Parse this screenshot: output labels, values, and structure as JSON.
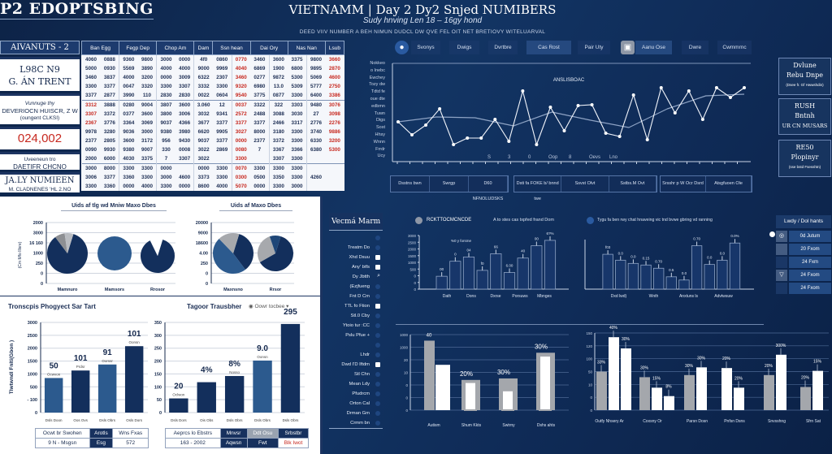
{
  "header": {
    "app_title": "P2 EDOPTSBING",
    "title": "VIETNAMM | Day 2 Dy2 Snjed NUMIBERS",
    "subtitle": "Sudy hnving Len 18 – 16gy hond",
    "tagline": "DEED VIIV NUMBER A BEH NIMUN DUDCL DW QVE FEL OIT NET BRETIOVY WITELUARVAL"
  },
  "info": {
    "header": "AIVANUTS - 2",
    "box1": [
      "L98C N9",
      "G. ÁN TRENT"
    ],
    "box2": [
      "Vunnuge thy",
      "DEVERIOCN HUISCR, Z W",
      "(oungent CLKSI)"
    ],
    "highlight": "024,002",
    "box4": [
      "Uveeneun tro",
      "DAETIFR CHCNO"
    ],
    "box5": [
      "JA.LY NUMIEEN",
      "M. CLADNENES 'HL 2.NO"
    ]
  },
  "table": {
    "headers": [
      {
        "label": "Ban Egg",
        "span": 2
      },
      {
        "label": "Fegp Dep",
        "span": 2
      },
      {
        "label": "Chop Am",
        "span": 2
      },
      {
        "label": "Dam",
        "span": 1
      },
      {
        "label": "Ssn hean",
        "span": 2
      },
      {
        "label": "Dai Ory",
        "span": 2
      },
      {
        "label": "Nas Nan",
        "span": 2
      },
      {
        "label": "Lsub",
        "span": 1
      }
    ],
    "red_columns": [
      8,
      13
    ],
    "rows": [
      [
        "4060",
        "0888",
        "9360",
        "9800",
        "3000",
        "0000",
        "4f0",
        "0860",
        "0770",
        "3460",
        "3600",
        "3375",
        "9800",
        "3660"
      ],
      [
        "5000",
        "0930",
        "5569",
        "3890",
        "4000",
        "4000",
        "9000",
        "9969",
        "4040",
        "6869",
        "1900",
        "6800",
        "9895",
        "2870"
      ],
      [
        "3460",
        "3837",
        "4000",
        "3200",
        "0000",
        "3009",
        "6322",
        "2307",
        "3460",
        "0277",
        "9872",
        "5300",
        "5069",
        "4600"
      ],
      [
        "3300",
        "3377",
        "0047",
        "3320",
        "3300",
        "3307",
        "3332",
        "3300",
        "9320",
        "6980",
        "13.0",
        "5309",
        "5777",
        "2750"
      ],
      [
        "3377",
        "2877",
        "3990",
        "110",
        "2830",
        "2830",
        "0022",
        "0604",
        "9540",
        "3775",
        "0877",
        "3300",
        "6400",
        "3386"
      ],
      [
        "3312",
        "3888",
        "0280",
        "9004",
        "3807",
        "3600",
        "3.060",
        "12",
        "0037",
        "3322",
        "322",
        "3303",
        "9480",
        "3076"
      ],
      [
        "3307",
        "3372",
        "0377",
        "3600",
        "3800",
        "3006",
        "3032",
        "9341",
        "2572",
        "2488",
        "3088",
        "3030",
        "27",
        "3098"
      ],
      [
        "2367",
        "3776",
        "3364",
        "3069",
        "9037",
        "4366",
        "3677",
        "3377",
        "3377",
        "3377",
        "2466",
        "3317",
        "2776",
        "2276"
      ],
      [
        "9978",
        "3280",
        "9036",
        "3000",
        "9380",
        "3980",
        "6620",
        "9905",
        "3027",
        "8000",
        "3180",
        "3300",
        "3740",
        "9886"
      ],
      [
        "2377",
        "2805",
        "3600",
        "3172",
        "956",
        "9430",
        "9037",
        "3377",
        "0000",
        "2377",
        "3372",
        "3300",
        "6330",
        "3200"
      ],
      [
        "0090",
        "9930",
        "9380",
        "9007",
        "330",
        "0008",
        "3022",
        "2869",
        "0080",
        "7",
        "3367",
        "3366",
        "6380",
        "5300"
      ],
      [
        "2000",
        "6000",
        "4030",
        "3375",
        "7",
        "3307",
        "3022",
        "",
        "3300",
        "",
        "3307",
        "3300",
        "",
        ""
      ],
      [
        "3000",
        "8000",
        "3300",
        "3300",
        "0000",
        "",
        "0000",
        "3300",
        "0070",
        "3300",
        "3300",
        "3300",
        "",
        ""
      ],
      [
        "3006",
        "3377",
        "3360",
        "3300",
        "3000",
        "4600",
        "3373",
        "3300",
        "0300",
        "0500",
        "3350",
        "3300",
        "4260",
        ""
      ],
      [
        "3300",
        "3360",
        "0000",
        "4000",
        "3300",
        "0000",
        "8600",
        "4000",
        "5070",
        "0000",
        "3300",
        "3000",
        "",
        ""
      ]
    ]
  },
  "nav": {
    "items": [
      "Svonys",
      "Dwigs",
      "Dvrtbre",
      "Cas Rost",
      "Pair Uty",
      "Aanu Ose",
      "Dwre",
      "Cwmmrnc"
    ],
    "active": [
      "Cas Rost",
      "Aanu Ose"
    ]
  },
  "line_chart": {
    "type": "line",
    "title": "ANSLISBOAC",
    "ylabels": [
      "Nokkeo",
      "o Inebc",
      "Ewchey",
      "Tozy dw",
      "Tdtd fe",
      "oue dte",
      "edbmn",
      "Tuwn",
      "Digs",
      "Sost",
      "Hhsy",
      "Wnnn",
      "Frrdr",
      "Ucy"
    ],
    "ylim": [
      0,
      120
    ],
    "series": [
      {
        "values": [
          50,
          34,
          46,
          66,
          22,
          30,
          30,
          53,
          26,
          88,
          22,
          68,
          39,
          70,
          71,
          36,
          32,
          83,
          28,
          92,
          61,
          88,
          53,
          92,
          80,
          92
        ]
      }
    ],
    "trend": [
      50,
      56,
      55,
      45,
      62,
      52,
      43,
      66,
      82,
      84
    ],
    "xlabels": [
      "S",
      "3",
      "0",
      "Oop",
      "8",
      "Oevs",
      "Lno"
    ]
  },
  "cards": [
    {
      "l1": "Dvlune",
      "l2": "Rebu Dnpe",
      "small": "(Dsee fr. Gf Hwwshdin)"
    },
    {
      "l1": "RUSH",
      "l2": "Bntnh",
      "l3": "UR CN MUSARS"
    },
    {
      "l1": "RE50",
      "l2": "Plopinyr",
      "small": "(sse bstd Fsesshtn)"
    }
  ],
  "button_strip": [
    [
      "Dsstns bwn",
      "Swrgp",
      "D60 NFNOLUDSKS"
    ],
    [
      "Dsti fa FOKE b/ bnnd twe",
      "Ssvst Olvt",
      "Sstbs.M Ovt"
    ],
    [
      "Srsshr p W Ocr Dsrd",
      "Atsgfuoen Ole"
    ]
  ],
  "pies": {
    "left_title": "Uids af tlg wd Mniw Maxo Dbes",
    "right_title": "Uids af Maxo Dbes",
    "left_ylabels": [
      "2000",
      "3000",
      "16 160",
      "1000",
      "250",
      "0",
      "0"
    ],
    "right_ylabels": [
      "20000",
      "9000",
      "18600",
      "4.00",
      "250",
      "0",
      "0"
    ],
    "left_axis_title": "(Cm Mfo Illsre)",
    "items": [
      {
        "label": "Mamnuro",
        "slices": [
          {
            "v": 85,
            "c": "#132f5c"
          },
          {
            "v": 8,
            "c": "#8d8f93"
          },
          {
            "v": 7,
            "c": "#b9bcc1"
          }
        ]
      },
      {
        "label": "Mamsors",
        "slices": [
          {
            "v": 100,
            "c": "#2c5a8e"
          }
        ]
      },
      {
        "label": "Rrosor",
        "slices": [
          {
            "v": 88,
            "c": "#132f5c"
          },
          {
            "v": 12,
            "c": "#ffffff"
          }
        ]
      },
      {
        "label": "Maxnsno",
        "slices": [
          {
            "v": 35,
            "c": "#132f5c"
          },
          {
            "v": 48,
            "c": "#2c5a8e"
          },
          {
            "v": 17,
            "c": "#a7a9ad"
          }
        ]
      },
      {
        "label": "Rrsor",
        "slices": [
          {
            "v": 62,
            "c": "#132f5c"
          },
          {
            "v": 28,
            "c": "#a7a9ad"
          },
          {
            "v": 10,
            "c": "#1e4677"
          }
        ]
      }
    ]
  },
  "bar_left": {
    "type": "bar",
    "title": "Tronscpis Phogyect Sar Tart",
    "ylabel": "Tlwtwndl Fnlti(Gbon )",
    "ylabels": [
      "3000",
      "2500",
      "2000",
      "1500",
      "1000",
      "500",
      "- 100",
      "0"
    ],
    "ylim": [
      0,
      3000
    ],
    "values": [
      1150,
      1400,
      1600,
      2210
    ],
    "labels": [
      "50",
      "101",
      "91",
      "101"
    ],
    "sublabels": [
      "Ocwvon",
      "Prdsr",
      "Oorssr",
      "Oonsn"
    ],
    "categories": [
      "Dsls Doon",
      "Oos Ovs",
      "Dsls Obrs",
      "Osls Dors"
    ],
    "table": [
      [
        "Ocwt br Swohen",
        "Arotls",
        "Wns Fxas"
      ],
      [
        "9 N -  Msgsn",
        "Esg",
        "572"
      ]
    ]
  },
  "bar_right": {
    "type": "bar",
    "title": "Tagoor Trausbher",
    "option": "Oowr tocbee",
    "ylabels": [
      "350",
      "300",
      "250",
      "200",
      "150",
      "100",
      "50",
      "0"
    ],
    "ylim": [
      0,
      350
    ],
    "values": [
      55,
      118,
      142,
      202,
      344
    ],
    "labels": [
      "20",
      "4%",
      "8%",
      "9.0",
      "295"
    ],
    "sublabels": [
      "Oclwon",
      "",
      "Nosso",
      "Oonsn",
      ""
    ],
    "categories": [
      "Dsls Dors",
      "Ois Obs",
      "Dsls Obrs",
      "Dsls Obrs",
      "Dsls Obrs"
    ],
    "table": [
      [
        "Aeprcs lo  Ebstrs",
        "Mnvsr",
        "Ddt Osu",
        "Srbstbr"
      ],
      [
        "163  -  2002",
        "Aqwsn",
        "Fwt",
        "Blk Iwot"
      ]
    ]
  },
  "sidebar": {
    "title": "Vecmá Marm",
    "items": [
      {
        "l": "",
        "m": "dot"
      },
      {
        "l": "Treatm Do",
        "m": "dot"
      },
      {
        "l": "Xhd Dsuu",
        "m": "sq"
      },
      {
        "l": "Any' btfs",
        "m": "sq"
      },
      {
        "l": "Dy Jbtth",
        "m": "mag"
      },
      {
        "l": "(Ezjfueng",
        "m": "dot"
      },
      {
        "l": "Fnt D Cm",
        "m": "dot"
      },
      {
        "l": "TTL fo Ftion",
        "m": "sq"
      },
      {
        "l": "Stl.0 Cby",
        "m": "dot"
      },
      {
        "l": "Ytoio tur  :CC",
        "m": "dot"
      },
      {
        "l": "Pslu Pfue  +",
        "m": "dot"
      },
      {
        "l": "",
        "m": "dot"
      },
      {
        "l": "Lhdr",
        "m": "dot"
      },
      {
        "l": "Dwd I'D Iftdm",
        "m": "sq"
      },
      {
        "l": "Stl Chn",
        "m": "dot"
      },
      {
        "l": "Mean Ldy",
        "m": "dot"
      },
      {
        "l": "Pfudrcm",
        "m": "dot"
      },
      {
        "l": "Orton Cal",
        "m": "dot"
      },
      {
        "l": "Drman Gm",
        "m": "dot"
      },
      {
        "l": "Crmm bn",
        "m": "dot"
      }
    ]
  },
  "mid_left": {
    "type": "bar",
    "heading": "RCKTTOCMCNCDE",
    "caption": "A to stes cas txpfed frand Dom",
    "inner_label": "%0 y forsme",
    "ylabels": [
      "3000",
      "2500",
      "2000",
      "1500",
      "1000",
      "500",
      "0",
      "0",
      "0"
    ],
    "ylim": [
      0,
      100
    ],
    "values": [
      24,
      52,
      60,
      35,
      66,
      31,
      58,
      81,
      91
    ],
    "labels": [
      "00",
      "0",
      "04",
      "f0",
      "66",
      "6.00",
      "40",
      "00",
      "6?%"
    ],
    "categories": [
      "Dath",
      "Dons",
      "Dxrse",
      "Porsuws",
      "Mbnges"
    ]
  },
  "mid_right": {
    "type": "bar",
    "caption": "Tygu fa ben rwy chat hnaveing vic tnd bvwe gbring vd ranning",
    "ylim": [
      0,
      100
    ],
    "values": [
      65,
      54,
      48,
      45,
      39,
      23,
      17,
      81,
      46,
      54,
      86
    ],
    "labels": [
      "f03",
      "0.0",
      "0.0",
      "0.15",
      "0.70",
      "0.5",
      "0.0",
      "0.70",
      "0.0",
      "0.0",
      "0.0%"
    ],
    "categories": [
      "Dxd lwd)",
      "Wnth",
      "Anxtuns ls",
      "Advtwsuw"
    ]
  },
  "legend": {
    "title": "Lwdy / Dol hants",
    "items": [
      "0d Jutum",
      "20 Fxom",
      "24 Fxm",
      "24 Fxom",
      "24 Fxom"
    ]
  },
  "grouped_left": {
    "type": "bar",
    "ylabels": [
      "1000",
      "1000",
      "20",
      "10",
      "0",
      "0",
      "0"
    ],
    "ylim": [
      0,
      100
    ],
    "groups": [
      {
        "gray": 92,
        "white": 60,
        "labels": [
          "40",
          "25%"
        ]
      },
      {
        "gray": 40,
        "white": 37,
        "labels": [
          "20%"
        ]
      },
      {
        "gray": 42,
        "white": 26,
        "labels": [
          "30%"
        ]
      },
      {
        "gray": 76,
        "white": 72,
        "labels": [
          "30%"
        ]
      }
    ],
    "categories": [
      "Autism",
      "Shum Kkts",
      "Swtrny",
      "Dshs ahts"
    ]
  },
  "grouped_right": {
    "type": "bar",
    "ylabels": [
      "150",
      "120",
      "100",
      "50",
      "10",
      "0",
      "0"
    ],
    "ylim": [
      0,
      110
    ],
    "groups": [
      {
        "bars": [
          {
            "c": "gray",
            "v": 55,
            "l": "33%"
          },
          {
            "c": "white",
            "v": 104,
            "l": "40%"
          },
          {
            "c": "white",
            "v": 88,
            "l": "30%"
          }
        ]
      },
      {
        "bars": [
          {
            "c": "gray",
            "v": 47,
            "l": "30%"
          },
          {
            "c": "white",
            "v": 32,
            "l": "15%"
          },
          {
            "c": "white",
            "v": 20,
            "l": "8%"
          }
        ]
      },
      {
        "bars": [
          {
            "c": "gray",
            "v": 50,
            "l": "30%"
          },
          {
            "c": "white",
            "v": 61,
            "l": "30%"
          }
        ]
      },
      {
        "bars": [
          {
            "c": "white",
            "v": 60,
            "l": "20%"
          },
          {
            "c": "white",
            "v": 32,
            "l": "20%"
          }
        ]
      },
      {
        "bars": [
          {
            "c": "gray",
            "v": 50,
            "l": "20%"
          },
          {
            "c": "white",
            "v": 79,
            "l": "300%"
          }
        ]
      },
      {
        "bars": [
          {
            "c": "gray",
            "v": 33,
            "l": "20%"
          },
          {
            "c": "white",
            "v": 56,
            "l": "15%"
          }
        ]
      }
    ],
    "categories": [
      "Outfy Nhsery Ar",
      "Coxsny Or",
      "Parsn Dosn",
      "Pnfsn Dsns",
      "Snvsshng",
      "Sfrn Sat"
    ]
  },
  "colors": {
    "navy": "#132f5c",
    "mid_blue": "#2c5a8e",
    "red": "#c7281f",
    "bg": "#123463"
  }
}
